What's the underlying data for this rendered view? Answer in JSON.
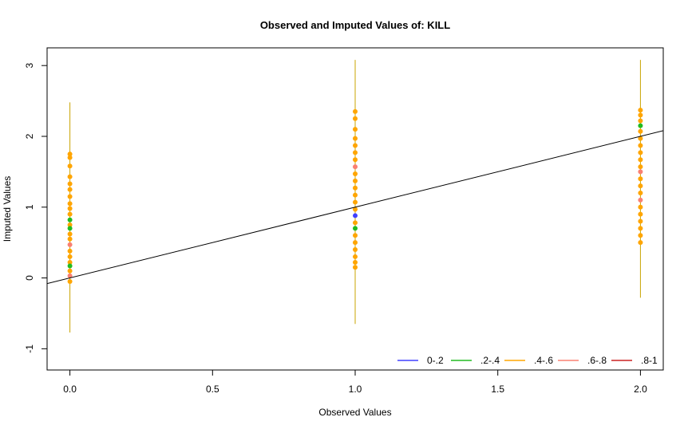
{
  "chart_data": {
    "type": "scatter",
    "title": "Observed and Imputed Values of: KILL",
    "xlabel": "Observed Values",
    "ylabel": "Imputed Values",
    "xlim": [
      -0.08,
      2.08
    ],
    "ylim": [
      -1.3,
      3.25
    ],
    "x_ticks": [
      0.0,
      0.5,
      1.0,
      1.5,
      2.0
    ],
    "x_tick_labels": [
      "0.0",
      "0.5",
      "1.0",
      "1.5",
      "2.0"
    ],
    "y_ticks": [
      -1,
      0,
      1,
      2,
      3
    ],
    "y_tick_labels": [
      "-1",
      "0",
      "1",
      "2",
      "3"
    ],
    "reference_line": {
      "intercept": 0,
      "slope": 1,
      "color": "#000000"
    },
    "legend_position": "bottom-right",
    "legend": [
      {
        "label": "0-.2",
        "color": "#4040ff"
      },
      {
        "label": ".2-.4",
        "color": "#22bb22"
      },
      {
        "label": ".4-.6",
        "color": "#ffa500"
      },
      {
        "label": ".6-.8",
        "color": "#fa8072"
      },
      {
        "label": ".8-1",
        "color": "#cc2222"
      }
    ],
    "intervals": [
      {
        "x": 0.0,
        "low": -0.77,
        "high": 2.48,
        "color": "#c8a400"
      },
      {
        "x": 1.0,
        "low": -0.65,
        "high": 3.08,
        "color": "#c8a400"
      },
      {
        "x": 2.0,
        "low": -0.28,
        "high": 3.08,
        "color": "#c8a400"
      }
    ],
    "points": [
      {
        "x": 0.0,
        "y": 1.75,
        "band": ".4-.6"
      },
      {
        "x": 0.0,
        "y": 1.7,
        "band": ".4-.6"
      },
      {
        "x": 0.0,
        "y": 1.58,
        "band": ".4-.6"
      },
      {
        "x": 0.0,
        "y": 1.43,
        "band": ".4-.6"
      },
      {
        "x": 0.0,
        "y": 1.33,
        "band": ".4-.6"
      },
      {
        "x": 0.0,
        "y": 1.25,
        "band": ".4-.6"
      },
      {
        "x": 0.0,
        "y": 1.15,
        "band": ".4-.6"
      },
      {
        "x": 0.0,
        "y": 1.05,
        "band": ".4-.6"
      },
      {
        "x": 0.0,
        "y": 0.98,
        "band": ".4-.6"
      },
      {
        "x": 0.0,
        "y": 0.9,
        "band": ".4-.6"
      },
      {
        "x": 0.0,
        "y": 0.82,
        "band": ".2-.4"
      },
      {
        "x": 0.0,
        "y": 0.75,
        "band": ".4-.6"
      },
      {
        "x": 0.0,
        "y": 0.7,
        "band": ".2-.4"
      },
      {
        "x": 0.0,
        "y": 0.62,
        "band": ".4-.6"
      },
      {
        "x": 0.0,
        "y": 0.55,
        "band": ".4-.6"
      },
      {
        "x": 0.0,
        "y": 0.47,
        "band": ".6-.8"
      },
      {
        "x": 0.0,
        "y": 0.38,
        "band": ".4-.6"
      },
      {
        "x": 0.0,
        "y": 0.3,
        "band": ".4-.6"
      },
      {
        "x": 0.0,
        "y": 0.22,
        "band": ".4-.6"
      },
      {
        "x": 0.0,
        "y": 0.17,
        "band": ".2-.4"
      },
      {
        "x": 0.0,
        "y": 0.1,
        "band": ".4-.6"
      },
      {
        "x": 0.0,
        "y": 0.03,
        "band": ".6-.8"
      },
      {
        "x": 0.0,
        "y": -0.05,
        "band": ".4-.6"
      },
      {
        "x": 1.0,
        "y": 2.35,
        "band": ".4-.6"
      },
      {
        "x": 1.0,
        "y": 2.25,
        "band": ".4-.6"
      },
      {
        "x": 1.0,
        "y": 2.1,
        "band": ".4-.6"
      },
      {
        "x": 1.0,
        "y": 1.97,
        "band": ".4-.6"
      },
      {
        "x": 1.0,
        "y": 1.87,
        "band": ".4-.6"
      },
      {
        "x": 1.0,
        "y": 1.77,
        "band": ".4-.6"
      },
      {
        "x": 1.0,
        "y": 1.67,
        "band": ".4-.6"
      },
      {
        "x": 1.0,
        "y": 1.57,
        "band": ".6-.8"
      },
      {
        "x": 1.0,
        "y": 1.47,
        "band": ".4-.6"
      },
      {
        "x": 1.0,
        "y": 1.37,
        "band": ".4-.6"
      },
      {
        "x": 1.0,
        "y": 1.27,
        "band": ".4-.6"
      },
      {
        "x": 1.0,
        "y": 1.17,
        "band": ".4-.6"
      },
      {
        "x": 1.0,
        "y": 1.07,
        "band": ".4-.6"
      },
      {
        "x": 1.0,
        "y": 0.97,
        "band": ".4-.6"
      },
      {
        "x": 1.0,
        "y": 0.88,
        "band": "0-.2"
      },
      {
        "x": 1.0,
        "y": 0.78,
        "band": ".4-.6"
      },
      {
        "x": 1.0,
        "y": 0.7,
        "band": ".2-.4"
      },
      {
        "x": 1.0,
        "y": 0.6,
        "band": ".4-.6"
      },
      {
        "x": 1.0,
        "y": 0.5,
        "band": ".4-.6"
      },
      {
        "x": 1.0,
        "y": 0.4,
        "band": ".4-.6"
      },
      {
        "x": 1.0,
        "y": 0.3,
        "band": ".4-.6"
      },
      {
        "x": 1.0,
        "y": 0.22,
        "band": ".4-.6"
      },
      {
        "x": 1.0,
        "y": 0.15,
        "band": ".4-.6"
      },
      {
        "x": 2.0,
        "y": 2.37,
        "band": ".4-.6"
      },
      {
        "x": 2.0,
        "y": 2.3,
        "band": ".4-.6"
      },
      {
        "x": 2.0,
        "y": 2.22,
        "band": ".4-.6"
      },
      {
        "x": 2.0,
        "y": 2.15,
        "band": ".2-.4"
      },
      {
        "x": 2.0,
        "y": 2.07,
        "band": ".4-.6"
      },
      {
        "x": 2.0,
        "y": 1.97,
        "band": ".4-.6"
      },
      {
        "x": 2.0,
        "y": 1.87,
        "band": ".4-.6"
      },
      {
        "x": 2.0,
        "y": 1.77,
        "band": ".4-.6"
      },
      {
        "x": 2.0,
        "y": 1.67,
        "band": ".4-.6"
      },
      {
        "x": 2.0,
        "y": 1.57,
        "band": ".4-.6"
      },
      {
        "x": 2.0,
        "y": 1.5,
        "band": ".6-.8"
      },
      {
        "x": 2.0,
        "y": 1.4,
        "band": ".4-.6"
      },
      {
        "x": 2.0,
        "y": 1.3,
        "band": ".4-.6"
      },
      {
        "x": 2.0,
        "y": 1.2,
        "band": ".4-.6"
      },
      {
        "x": 2.0,
        "y": 1.1,
        "band": ".6-.8"
      },
      {
        "x": 2.0,
        "y": 1.0,
        "band": ".4-.6"
      },
      {
        "x": 2.0,
        "y": 0.9,
        "band": ".4-.6"
      },
      {
        "x": 2.0,
        "y": 0.8,
        "band": ".4-.6"
      },
      {
        "x": 2.0,
        "y": 0.7,
        "band": ".4-.6"
      },
      {
        "x": 2.0,
        "y": 0.6,
        "band": ".4-.6"
      },
      {
        "x": 2.0,
        "y": 0.5,
        "band": ".4-.6"
      }
    ]
  }
}
